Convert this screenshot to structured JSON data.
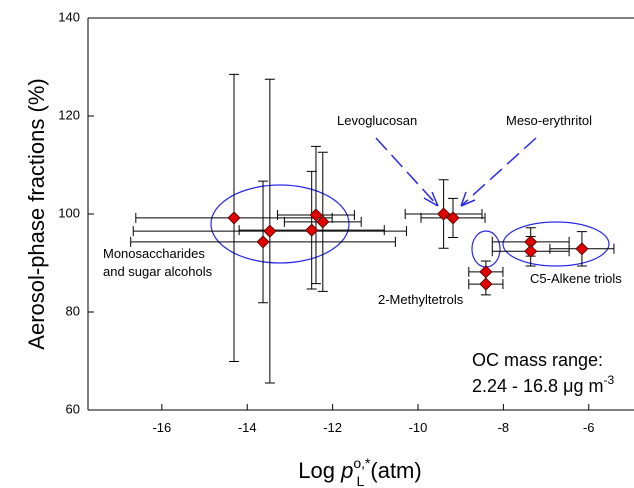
{
  "chart_data": {
    "type": "scatter",
    "y_label": "Aerosol-phase fractions (%)",
    "x_label": [
      "Log ",
      "p",
      "o,*",
      "L",
      " (atm)"
    ],
    "xlim": [
      -17.73,
      -4.94
    ],
    "ylim": [
      60,
      140
    ],
    "xticks": [
      -16,
      -14,
      -12,
      -10,
      -8,
      -6
    ],
    "yticks": [
      60,
      80,
      100,
      120,
      140
    ],
    "series": [
      {
        "color": "#e00000",
        "x": [
          -14.31,
          -13.63,
          -13.47,
          -12.39,
          -12.49,
          -12.23,
          -9.4,
          -9.18,
          -8.41,
          -8.41,
          -7.36,
          -7.36,
          -6.16
        ],
        "y": [
          99.2,
          94.3,
          96.5,
          99.8,
          96.7,
          98.4,
          100,
          99.2,
          88.2,
          85.7,
          94.3,
          92.4,
          92.9
        ],
        "xerr": [
          2.3,
          3.1,
          3.2,
          0.9,
          1.7,
          0.9,
          0.9,
          0.75,
          0.4,
          0.4,
          0.9,
          0.9,
          0.75
        ],
        "yerr": [
          29.3,
          12.4,
          31,
          14,
          12,
          14.2,
          7,
          4,
          2.2,
          2.2,
          2.9,
          3,
          3.5
        ]
      }
    ],
    "annotations": {
      "levoglucosan": "Levoglucosan",
      "meso": "Meso-erythritol",
      "mono": [
        "Monosaccharides",
        "and sugar alcohols"
      ],
      "methyltetrols": "2-Methyltetrols",
      "triols": "C5-Alkene triols",
      "oc": [
        "OC mass range:",
        "2.24 - 16.8 ",
        "μg m",
        "-3"
      ]
    }
  }
}
